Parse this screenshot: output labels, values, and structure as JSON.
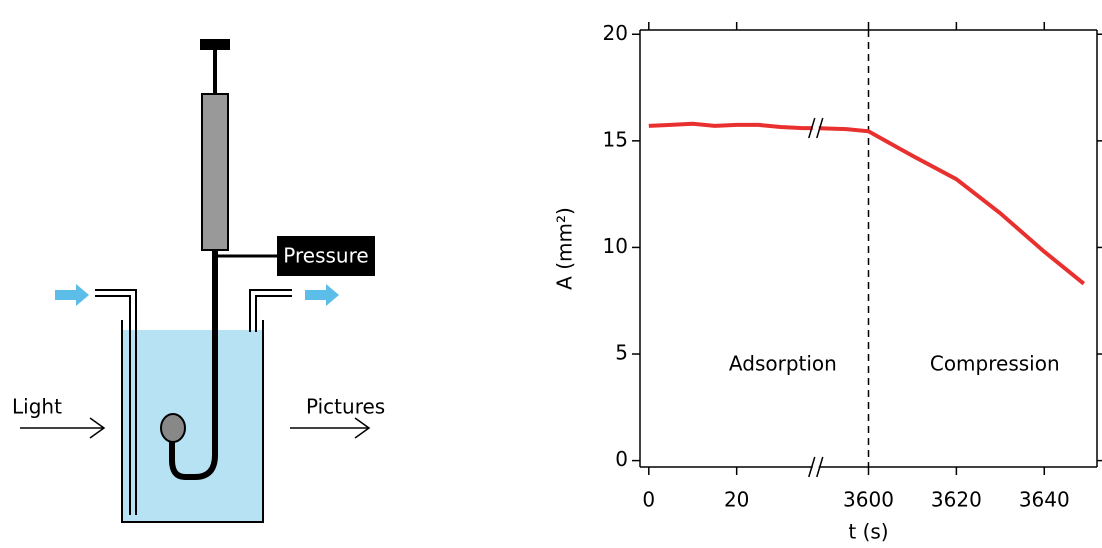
{
  "diagram": {
    "labels": {
      "pressure": "Pressure",
      "light": "Light",
      "pictures": "Pictures"
    }
  },
  "chart_data": {
    "type": "line",
    "xlabel": "t (s)",
    "ylabel": "A (mm²)",
    "annotations": [
      "Adsorption",
      "Compression"
    ],
    "xlim": [
      -2,
      3652
    ],
    "x_break": [
      38,
      3588
    ],
    "xticks": [
      0,
      20,
      3600,
      3620,
      3640
    ],
    "ylim": [
      -0.3,
      20.2
    ],
    "yticks": [
      0,
      5,
      10,
      15,
      20
    ],
    "vline": 3600,
    "series": [
      {
        "name": "A",
        "color": "#e8312f",
        "x": [
          0,
          5,
          10,
          15,
          20,
          25,
          30,
          35,
          38,
          3588,
          3595,
          3600,
          3610,
          3620,
          3630,
          3640,
          3649
        ],
        "values": [
          15.7,
          15.75,
          15.8,
          15.7,
          15.75,
          15.75,
          15.65,
          15.6,
          15.6,
          15.6,
          15.55,
          15.45,
          14.3,
          13.2,
          11.6,
          9.8,
          8.3
        ]
      }
    ]
  }
}
